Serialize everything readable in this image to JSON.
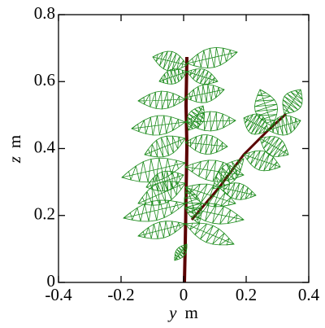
{
  "chart_data": {
    "type": "illustration",
    "xlabel": {
      "symbol": "y",
      "unit": "m"
    },
    "ylabel": {
      "symbol": "z",
      "unit": "m"
    },
    "xlim": [
      -0.4,
      0.4
    ],
    "xticks": [
      -0.4,
      -0.2,
      0,
      0.2,
      0.4
    ],
    "ylim": [
      0,
      0.8
    ],
    "yticks": [
      0,
      0.2,
      0.4,
      0.6,
      0.8
    ]
  }
}
